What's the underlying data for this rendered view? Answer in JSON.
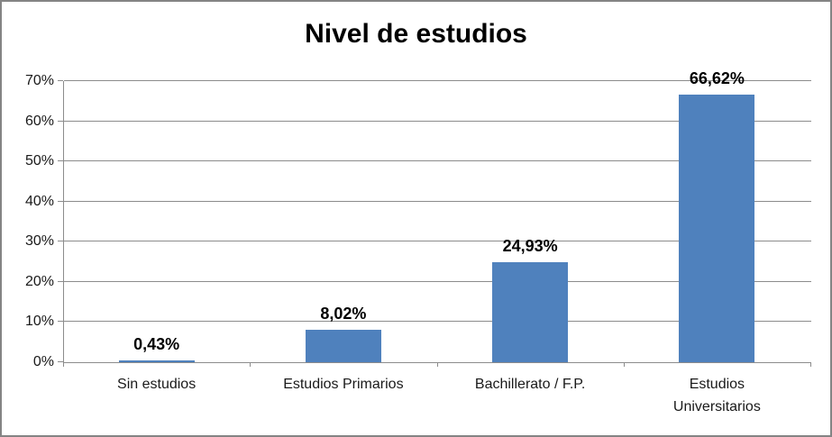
{
  "chart_data": {
    "type": "bar",
    "title": "Nivel de estudios",
    "categories": [
      "Sin estudios",
      "Estudios Primarios",
      "Bachillerato / F.P.",
      "Estudios Universitarios"
    ],
    "values": [
      0.43,
      8.02,
      24.93,
      66.62
    ],
    "value_labels": [
      "0,43%",
      "8,02%",
      "24,93%",
      "66,62%"
    ],
    "y_ticks": [
      "0%",
      "10%",
      "20%",
      "30%",
      "40%",
      "50%",
      "60%",
      "70%"
    ],
    "ylim": [
      0,
      70
    ],
    "xlabel": "",
    "ylabel": "",
    "grid": "horizontal",
    "legend": "none",
    "bar_color": "#4F81BD",
    "grid_color": "#8C8C8C",
    "frame_color": "#848484",
    "text_color": "#1a1a1a",
    "title_color": "#000000"
  }
}
